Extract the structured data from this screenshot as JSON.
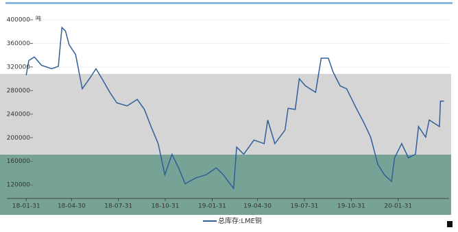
{
  "chart_data": {
    "type": "line",
    "y_unit": "吨",
    "x": [
      "18-01-31",
      "18-02-05",
      "18-02-16",
      "18-03-02",
      "18-03-22",
      "18-04-04",
      "18-04-11",
      "18-04-18",
      "18-04-25",
      "18-05-08",
      "18-05-21",
      "18-06-04",
      "18-06-17",
      "18-07-01",
      "18-07-14",
      "18-07-28",
      "18-08-17",
      "18-09-06",
      "18-09-20",
      "18-10-03",
      "18-10-17",
      "18-10-30",
      "18-11-13",
      "18-11-26",
      "18-12-09",
      "18-12-30",
      "19-01-19",
      "19-02-08",
      "19-02-22",
      "19-03-14",
      "19-03-20",
      "19-04-03",
      "19-04-23",
      "19-05-13",
      "19-05-20",
      "19-06-03",
      "19-06-23",
      "19-06-29",
      "19-07-13",
      "19-07-21",
      "19-08-02",
      "19-08-22",
      "19-09-02",
      "19-09-16",
      "19-09-25",
      "19-10-09",
      "19-10-22",
      "19-11-11",
      "19-11-25",
      "19-12-08",
      "19-12-22",
      "20-01-04",
      "20-01-18",
      "20-01-24",
      "20-02-07",
      "20-02-20",
      "20-03-05",
      "20-03-11",
      "20-03-25",
      "20-04-01",
      "20-04-21",
      "20-04-23",
      "20-04-30"
    ],
    "series": [
      {
        "name": "总库存:LME铜",
        "color": "#2e5f9a",
        "values": [
          306000,
          331000,
          337000,
          323000,
          317000,
          321000,
          387000,
          381000,
          358000,
          341000,
          283000,
          300000,
          317000,
          297000,
          277000,
          259000,
          254000,
          265000,
          248000,
          219000,
          190000,
          137000,
          172000,
          149000,
          122000,
          132000,
          137000,
          149000,
          137000,
          114000,
          184000,
          172000,
          196000,
          190000,
          230000,
          190000,
          213000,
          250000,
          248000,
          300000,
          288000,
          277000,
          335000,
          335000,
          312000,
          288000,
          283000,
          248000,
          225000,
          201000,
          155000,
          137000,
          126000,
          166000,
          190000,
          166000,
          172000,
          219000,
          201000,
          230000,
          219000,
          262000,
          262000
        ]
      }
    ],
    "xlim": [
      "17-12-24",
      "20-05-10"
    ],
    "xticks": [
      "18-01-31",
      "18-04-30",
      "18-07-31",
      "18-10-31",
      "19-01-31",
      "19-04-30",
      "19-07-31",
      "19-10-31",
      "20-01-31"
    ],
    "ylim": [
      97000,
      422000
    ],
    "yticks": [
      120000,
      160000,
      200000,
      240000,
      280000,
      320000,
      360000,
      400000
    ],
    "grid": true
  }
}
